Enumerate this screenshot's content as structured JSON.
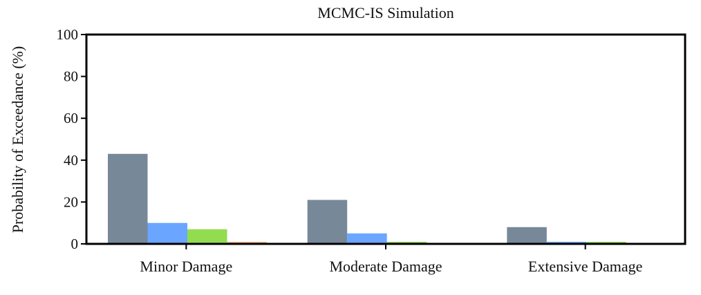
{
  "chart_data": {
    "type": "bar",
    "title": "MCMC-IS Simulation",
    "xlabel": "",
    "ylabel": "Probability of Exceedance (%)",
    "ylim": [
      0,
      100
    ],
    "yticks": [
      0,
      20,
      40,
      60,
      80,
      100
    ],
    "grid": false,
    "legend": "none",
    "categories": [
      "Minor Damage",
      "Moderate Damage",
      "Extensive Damage"
    ],
    "series": [
      {
        "color": "#778899",
        "values": [
          43,
          21,
          8
        ]
      },
      {
        "color": "#6aa6ff",
        "values": [
          10,
          5,
          1
        ]
      },
      {
        "color": "#92dd4f",
        "values": [
          7,
          1,
          1
        ]
      },
      {
        "color": "#f8b888",
        "values": [
          1,
          0,
          0
        ]
      }
    ]
  }
}
